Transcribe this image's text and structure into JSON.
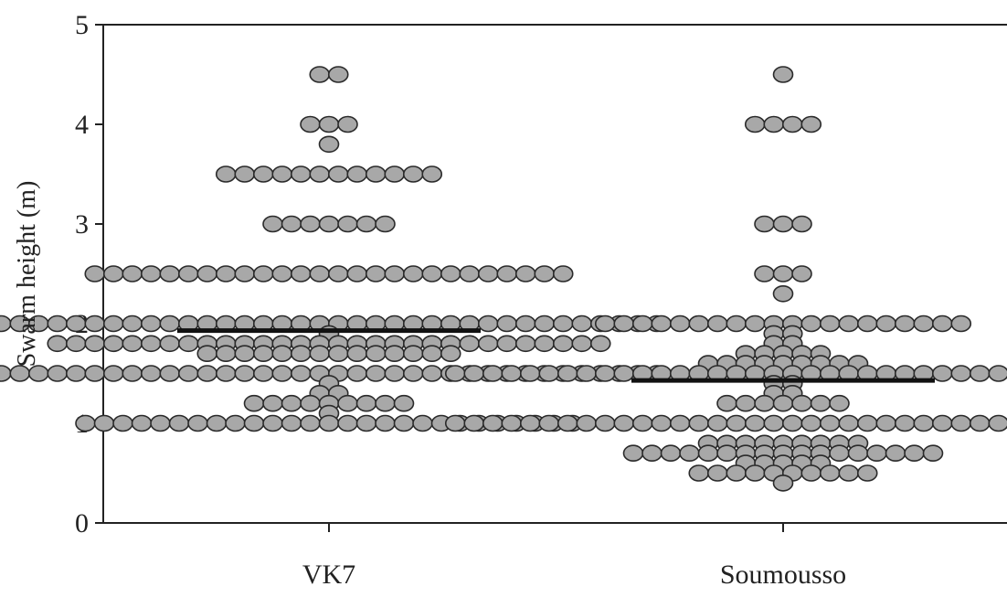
{
  "chart_data": {
    "type": "scatter",
    "subtype": "dot-plot (beeswarm) with mean line",
    "title": "",
    "xlabel": "",
    "ylabel": "Swarm height (m)",
    "ylim": [
      0,
      5
    ],
    "y_ticks": [
      "0",
      "1",
      "2",
      "3",
      "4",
      "5"
    ],
    "categories": [
      "VK7",
      "Soumousso"
    ],
    "grid": false,
    "legend": "none",
    "colors": {
      "point_fill": "#a8a8a8",
      "point_stroke": "#2a2a2a",
      "axis": "#222222",
      "mean_line": "#111111"
    },
    "series": [
      {
        "category": "VK7",
        "mean": 1.93,
        "values": [
          4.5,
          4.5,
          4.0,
          4.0,
          4.0,
          3.8,
          3.5,
          3.5,
          3.5,
          3.5,
          3.5,
          3.5,
          3.5,
          3.5,
          3.5,
          3.5,
          3.5,
          3.5,
          3.0,
          3.0,
          3.0,
          3.0,
          3.0,
          3.0,
          3.0,
          2.5,
          2.5,
          2.5,
          2.5,
          2.5,
          2.5,
          2.5,
          2.5,
          2.5,
          2.5,
          2.5,
          2.5,
          2.5,
          2.5,
          2.5,
          2.5,
          2.5,
          2.5,
          2.5,
          2.5,
          2.5,
          2.5,
          2.5,
          2.5,
          2.5,
          2.5,
          2.0,
          2.0,
          2.0,
          2.0,
          2.0,
          2.0,
          2.0,
          2.0,
          2.0,
          2.0,
          2.0,
          2.0,
          2.0,
          2.0,
          2.0,
          2.0,
          2.0,
          2.0,
          2.0,
          2.0,
          2.0,
          2.0,
          2.0,
          2.0,
          2.0,
          2.0,
          2.0,
          2.0,
          2.0,
          2.0,
          2.0,
          2.0,
          2.0,
          2.0,
          2.0,
          2.0,
          1.9,
          1.8,
          1.8,
          1.8,
          1.8,
          1.8,
          1.8,
          1.8,
          1.8,
          1.8,
          1.8,
          1.8,
          1.8,
          1.8,
          1.8,
          1.8,
          1.8,
          1.8,
          1.8,
          1.8,
          1.8,
          1.8,
          1.8,
          1.8,
          1.8,
          1.8,
          1.8,
          1.8,
          1.8,
          1.8,
          1.8,
          1.7,
          1.7,
          1.7,
          1.7,
          1.7,
          1.7,
          1.7,
          1.7,
          1.7,
          1.7,
          1.7,
          1.7,
          1.7,
          1.7,
          1.5,
          1.5,
          1.5,
          1.5,
          1.5,
          1.5,
          1.5,
          1.5,
          1.5,
          1.5,
          1.5,
          1.5,
          1.5,
          1.5,
          1.5,
          1.5,
          1.5,
          1.5,
          1.5,
          1.5,
          1.5,
          1.5,
          1.5,
          1.5,
          1.5,
          1.5,
          1.5,
          1.5,
          1.5,
          1.5,
          1.5,
          1.5,
          1.5,
          1.5,
          1.5,
          1.5,
          1.4,
          1.3,
          1.3,
          1.2,
          1.2,
          1.2,
          1.2,
          1.2,
          1.2,
          1.2,
          1.2,
          1.2,
          1.1,
          1.0,
          1.0,
          1.0,
          1.0,
          1.0,
          1.0,
          1.0,
          1.0,
          1.0,
          1.0,
          1.0,
          1.0,
          1.0,
          1.0,
          1.0,
          1.0,
          1.0,
          1.0,
          1.0,
          1.0,
          1.0,
          1.0,
          1.0,
          1.0,
          1.0,
          1.0,
          1.0
        ]
      },
      {
        "category": "Soumousso",
        "mean": 1.43,
        "values": [
          4.5,
          4.0,
          4.0,
          4.0,
          4.0,
          3.0,
          3.0,
          3.0,
          2.5,
          2.5,
          2.5,
          2.3,
          2.0,
          2.0,
          2.0,
          2.0,
          2.0,
          2.0,
          2.0,
          2.0,
          2.0,
          2.0,
          2.0,
          2.0,
          2.0,
          2.0,
          2.0,
          2.0,
          2.0,
          2.0,
          2.0,
          2.0,
          1.9,
          1.9,
          1.8,
          1.8,
          1.7,
          1.7,
          1.7,
          1.7,
          1.7,
          1.6,
          1.6,
          1.6,
          1.6,
          1.6,
          1.6,
          1.6,
          1.6,
          1.6,
          1.5,
          1.5,
          1.5,
          1.5,
          1.5,
          1.5,
          1.5,
          1.5,
          1.5,
          1.5,
          1.5,
          1.5,
          1.5,
          1.5,
          1.5,
          1.5,
          1.5,
          1.5,
          1.5,
          1.5,
          1.5,
          1.5,
          1.5,
          1.5,
          1.5,
          1.5,
          1.5,
          1.5,
          1.5,
          1.5,
          1.5,
          1.5,
          1.5,
          1.5,
          1.5,
          1.5,
          1.4,
          1.4,
          1.3,
          1.3,
          1.2,
          1.2,
          1.2,
          1.2,
          1.2,
          1.2,
          1.2,
          1.0,
          1.0,
          1.0,
          1.0,
          1.0,
          1.0,
          1.0,
          1.0,
          1.0,
          1.0,
          1.0,
          1.0,
          1.0,
          1.0,
          1.0,
          1.0,
          1.0,
          1.0,
          1.0,
          1.0,
          1.0,
          1.0,
          1.0,
          1.0,
          1.0,
          1.0,
          1.0,
          1.0,
          1.0,
          1.0,
          1.0,
          1.0,
          1.0,
          1.0,
          1.0,
          1.0,
          0.8,
          0.8,
          0.8,
          0.8,
          0.8,
          0.8,
          0.8,
          0.8,
          0.8,
          0.7,
          0.7,
          0.7,
          0.7,
          0.7,
          0.7,
          0.7,
          0.7,
          0.7,
          0.7,
          0.7,
          0.7,
          0.7,
          0.7,
          0.7,
          0.7,
          0.7,
          0.6,
          0.6,
          0.6,
          0.6,
          0.6,
          0.5,
          0.5,
          0.5,
          0.5,
          0.5,
          0.5,
          0.5,
          0.5,
          0.5,
          0.5,
          0.4
        ]
      }
    ]
  }
}
